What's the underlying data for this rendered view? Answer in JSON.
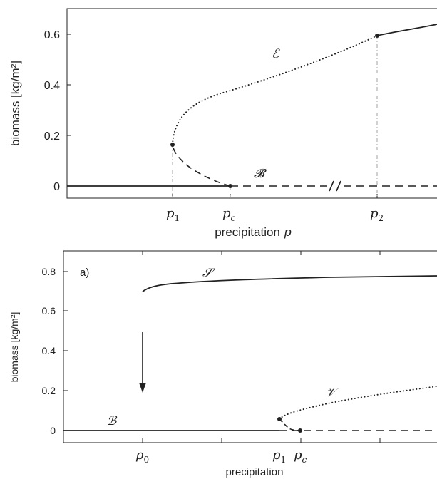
{
  "chart_data": [
    {
      "type": "line",
      "ylabel": "biomass [kg/m²]",
      "xlabel": "precipitation",
      "xlabel_symbol": "p",
      "ylim": [
        -0.05,
        0.7
      ],
      "yticks": [
        "0",
        "0.2",
        "0.4",
        "0.6"
      ],
      "xtick_labels": [
        "p1",
        "pc",
        "p2"
      ],
      "axis_break": true,
      "grid": false,
      "series": [
        {
          "name": "𝓑",
          "style": "solid",
          "points": [
            [
              0,
              0
            ],
            [
              1,
              0
            ]
          ]
        },
        {
          "name": "𝓑",
          "style": "dashed",
          "points": [
            [
              1,
              0
            ],
            [
              1.14,
              0.003
            ],
            [
              1.32,
              0.02
            ],
            [
              1.52,
              0.05
            ],
            [
              1.7,
              0.085
            ],
            [
              1.86,
              0.12
            ],
            [
              2.0,
              0.163
            ]
          ]
        },
        {
          "name": "𝓑",
          "style": "dashed",
          "points": [
            [
              1,
              0
            ],
            [
              2.91,
              0
            ]
          ]
        },
        {
          "name": "ℰ",
          "style": "dotted",
          "points": [
            [
              0,
              0.163
            ],
            [
              0.3,
              0.265
            ],
            [
              0.8,
              0.33
            ],
            [
              1.5,
              0.39
            ],
            [
              2.3,
              0.44
            ],
            [
              3.5,
              0.49
            ],
            [
              5.0,
              0.535
            ],
            [
              6.5,
              0.565
            ],
            [
              7.45,
              0.589
            ]
          ]
        },
        {
          "name": "ℰ",
          "style": "solid",
          "points": [
            [
              7.45,
              0.589
            ],
            [
              9.6,
              0.632
            ]
          ]
        }
      ],
      "markers": [
        [
          0,
          0.163
        ],
        [
          1,
          0
        ],
        [
          7.45,
          0.589
        ]
      ],
      "series_labels": [
        "ℰ",
        "𝓑"
      ]
    },
    {
      "type": "line",
      "panel_label": "a)",
      "ylabel": "biomass [kg/m²]",
      "xlabel": "precipitation",
      "ylim": [
        -0.05,
        0.9
      ],
      "yticks": [
        "0",
        "0.2",
        "0.4",
        "0.6",
        "0.8"
      ],
      "xtick_labels": [
        "p0",
        "p1",
        "pc"
      ],
      "grid": false,
      "series": [
        {
          "name": "𝒮",
          "style": "solid",
          "points": [
            [
              0,
              0.7
            ],
            [
              0.1,
              0.715
            ],
            [
              0.3,
              0.728
            ],
            [
              0.7,
              0.742
            ],
            [
              1.2,
              0.752
            ],
            [
              2.0,
              0.762
            ],
            [
              3.0,
              0.77
            ],
            [
              3.7,
              0.774
            ]
          ]
        },
        {
          "name": "ℬ",
          "style": "solid",
          "points": [
            [
              -1,
              0
            ],
            [
              1.73,
              0
            ]
          ]
        },
        {
          "name": "ℬ",
          "style": "dashed",
          "points": [
            [
              1.73,
              0
            ],
            [
              1.94,
              0
            ],
            [
              3.7,
              0
            ]
          ]
        },
        {
          "name": "ℬ",
          "style": "dashed",
          "points": [
            [
              1.73,
              0.058
            ],
            [
              1.78,
              0.04
            ],
            [
              1.82,
              0.022
            ],
            [
              1.87,
              0.008
            ],
            [
              1.94,
              0
            ]
          ]
        },
        {
          "name": "𝒱",
          "style": "dotted",
          "points": [
            [
              1.73,
              0.058
            ],
            [
              1.8,
              0.08
            ],
            [
              2.0,
              0.115
            ],
            [
              2.4,
              0.155
            ],
            [
              3.0,
              0.19
            ],
            [
              3.7,
              0.222
            ]
          ]
        }
      ],
      "markers": [
        [
          1.73,
          0.058
        ],
        [
          1.94,
          0
        ]
      ],
      "series_labels": [
        "𝒮",
        "𝒱",
        "ℬ"
      ],
      "annotation": "downward arrow from 𝒮 toward ℬ at p0"
    }
  ]
}
